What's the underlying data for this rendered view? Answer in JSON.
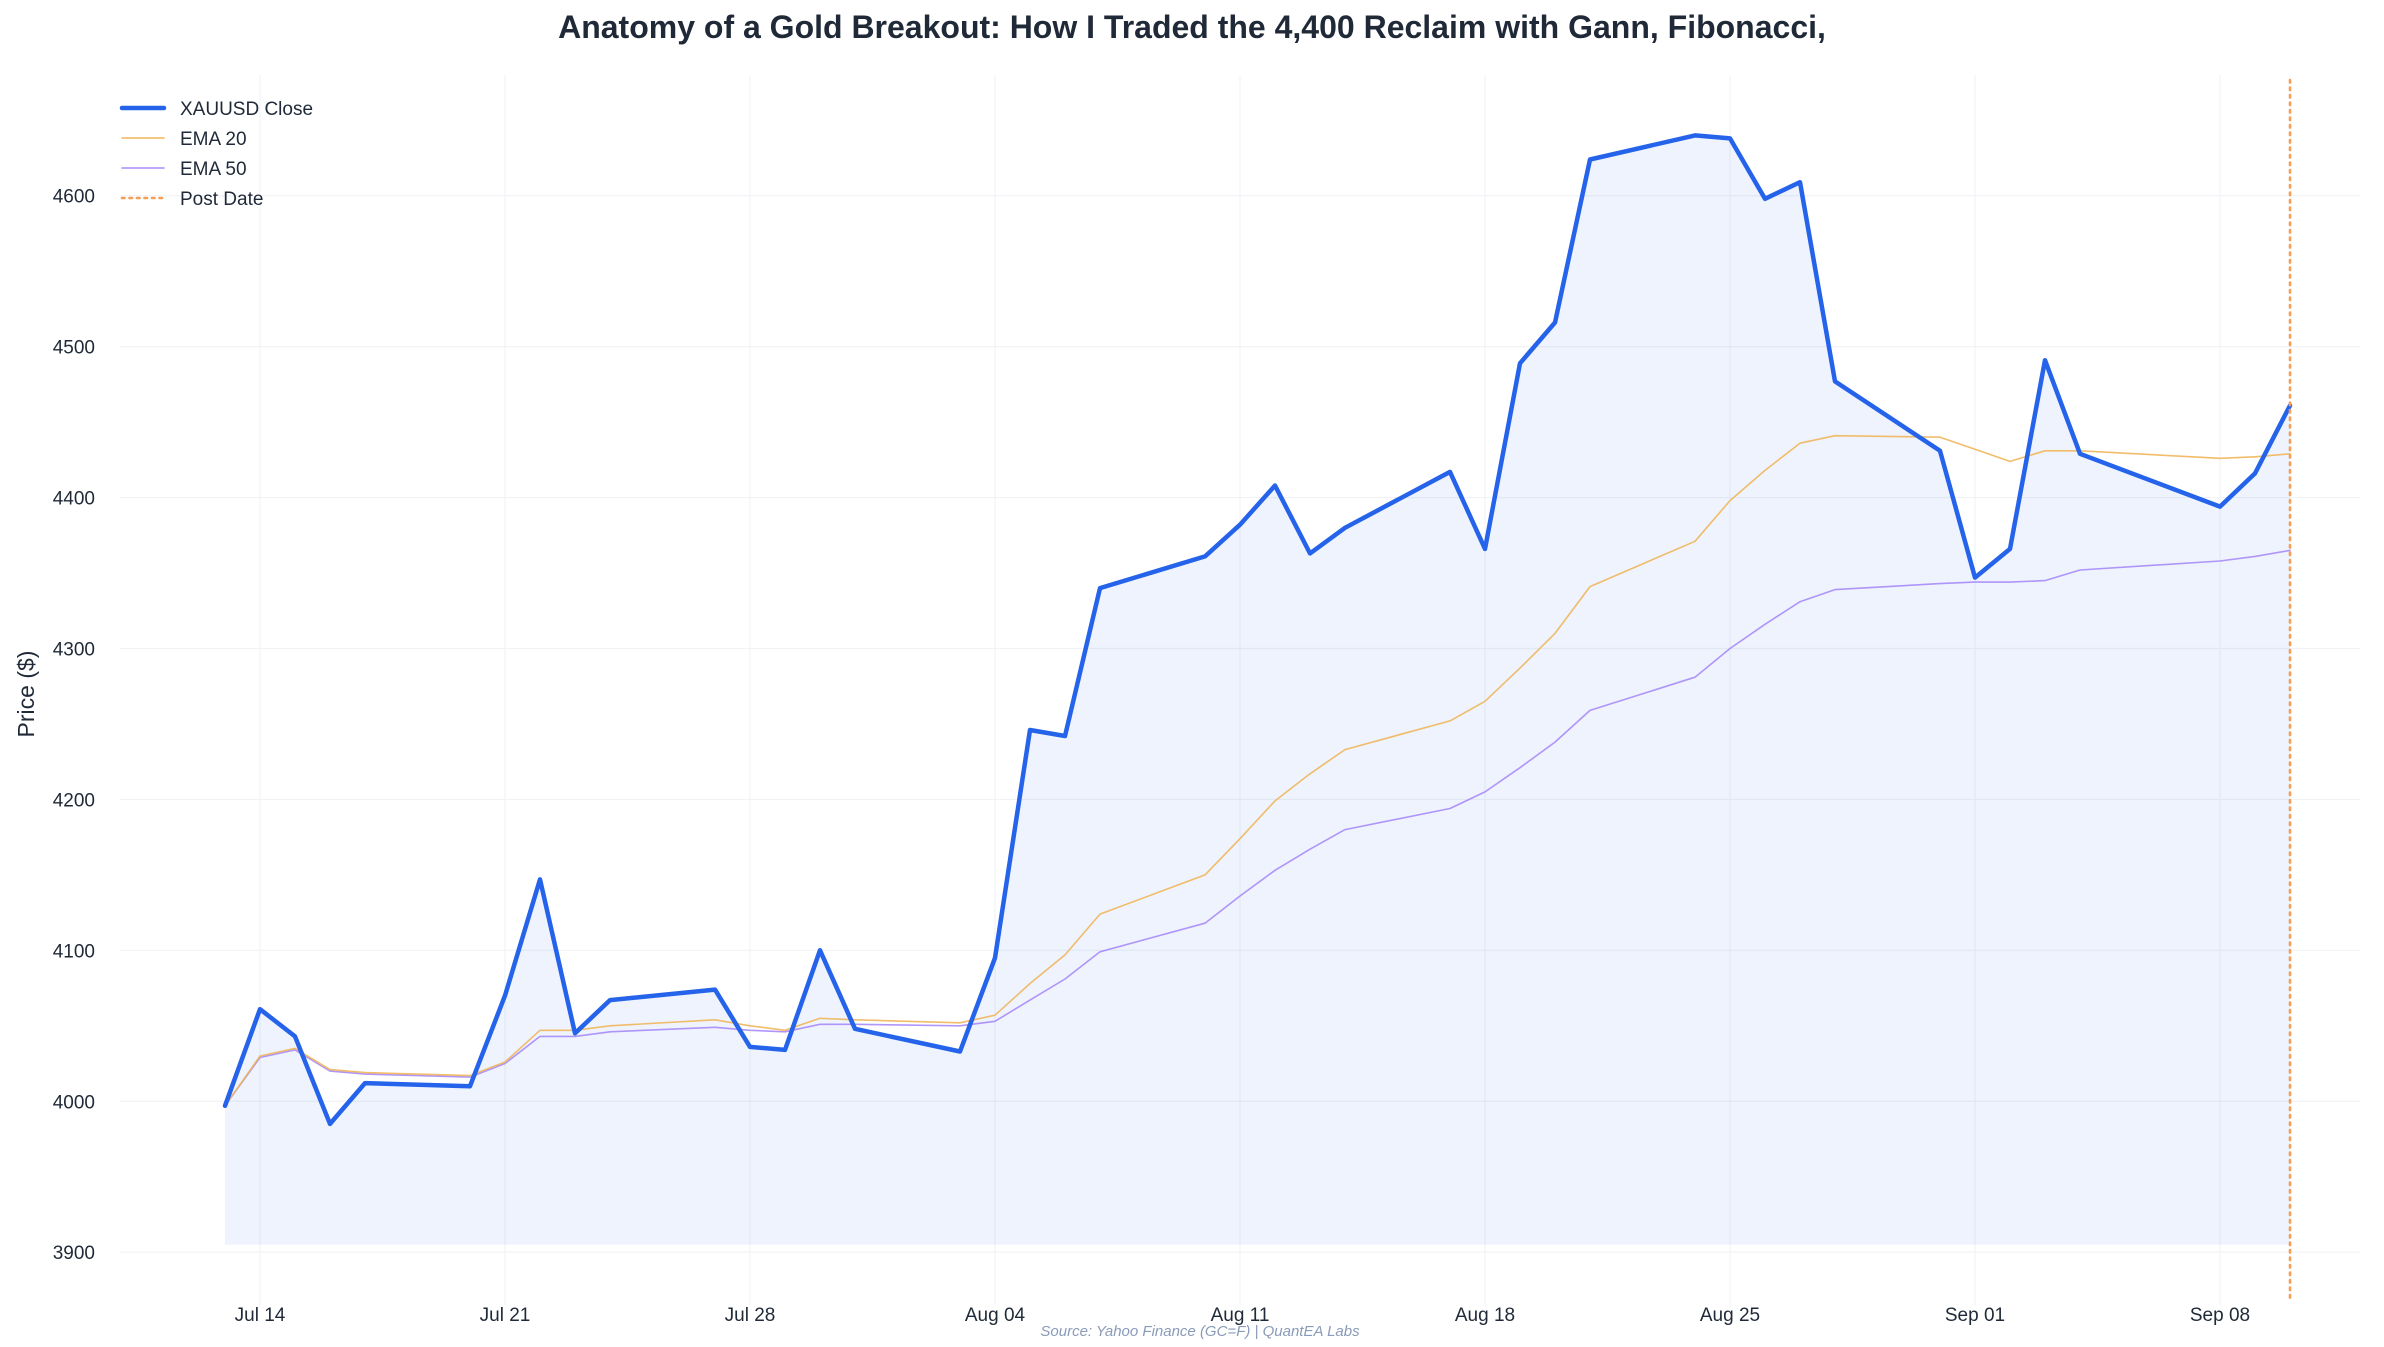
{
  "chart_data": {
    "type": "line",
    "title": "Anatomy of a Gold Breakout: How I Traded the 4,400 Reclaim with Gann, Fibonacci,",
    "xlabel": "",
    "ylabel": "Price ($)",
    "source_note": "Source: Yahoo Finance (GC=F) | QuantEA Labs",
    "x_ticks": [
      "2025-07-14",
      "2025-07-21",
      "2025-07-28",
      "2025-08-04",
      "2025-08-11",
      "2025-08-18",
      "2025-08-25",
      "2025-09-01",
      "2025-09-08"
    ],
    "x_tick_labels": [
      "Jul 14",
      "Jul 21",
      "Jul 28",
      "Aug 04",
      "Aug 11",
      "Aug 18",
      "Aug 25",
      "Sep 01",
      "Sep 08"
    ],
    "xlim": [
      "2025-07-10",
      "2025-09-12"
    ],
    "y_ticks": [
      3900,
      4000,
      4100,
      4200,
      4300,
      4400,
      4500,
      4600
    ],
    "ylim": [
      3865,
      4680
    ],
    "fill_baseline": 3905,
    "grid": true,
    "legend_position": "top-left",
    "dates": [
      "2025-07-13",
      "2025-07-14",
      "2025-07-15",
      "2025-07-16",
      "2025-07-17",
      "2025-07-20",
      "2025-07-21",
      "2025-07-22",
      "2025-07-23",
      "2025-07-24",
      "2025-07-27",
      "2025-07-28",
      "2025-07-29",
      "2025-07-30",
      "2025-07-31",
      "2025-08-03",
      "2025-08-04",
      "2025-08-05",
      "2025-08-06",
      "2025-08-07",
      "2025-08-10",
      "2025-08-11",
      "2025-08-12",
      "2025-08-13",
      "2025-08-14",
      "2025-08-17",
      "2025-08-18",
      "2025-08-19",
      "2025-08-20",
      "2025-08-21",
      "2025-08-24",
      "2025-08-25",
      "2025-08-26",
      "2025-08-27",
      "2025-08-28",
      "2025-08-31",
      "2025-09-01",
      "2025-09-02",
      "2025-09-03",
      "2025-09-04",
      "2025-09-08",
      "2025-09-09",
      "2025-09-10"
    ],
    "series": [
      {
        "name": "XAUUSD Close",
        "color": "#2563eb",
        "style": "solid",
        "values": [
          3997,
          4061,
          4043,
          3985,
          4012,
          4010,
          4070,
          4147,
          4045,
          4067,
          4074,
          4036,
          4034,
          4100,
          4048,
          4033,
          4095,
          4246,
          4242,
          4340,
          4361,
          4382,
          4408,
          4363,
          4380,
          4417,
          4366,
          4489,
          4516,
          4624,
          4640,
          4638,
          4598,
          4609,
          4477,
          4431,
          4347,
          4366,
          4491,
          4429,
          4394,
          4416,
          4461
        ]
      },
      {
        "name": "EMA 20",
        "color": "#f0b65a",
        "style": "solid",
        "values": [
          3997,
          4030,
          4035,
          4021,
          4019,
          4017,
          4026,
          4047,
          4047,
          4050,
          4054,
          4050,
          4047,
          4055,
          4054,
          4052,
          4057,
          4078,
          4097,
          4124,
          4150,
          4174,
          4199,
          4217,
          4233,
          4252,
          4265,
          4287,
          4310,
          4341,
          4371,
          4398,
          4418,
          4436,
          4441,
          4440,
          4432,
          4424,
          4431,
          4431,
          4426,
          4427,
          4429
        ]
      },
      {
        "name": "EMA 50",
        "color": "#a78bfa",
        "style": "solid",
        "values": [
          3997,
          4029,
          4034,
          4020,
          4018,
          4016,
          4025,
          4043,
          4043,
          4046,
          4049,
          4047,
          4046,
          4051,
          4051,
          4050,
          4053,
          4067,
          4081,
          4099,
          4118,
          4136,
          4153,
          4167,
          4180,
          4194,
          4205,
          4221,
          4238,
          4259,
          4281,
          4300,
          4316,
          4331,
          4339,
          4343,
          4344,
          4344,
          4345,
          4352,
          4358,
          4361,
          4365
        ]
      }
    ],
    "vertical_line": {
      "name": "Post Date",
      "date": "2025-09-10",
      "color": "#f59e56",
      "style": "dotted"
    }
  }
}
